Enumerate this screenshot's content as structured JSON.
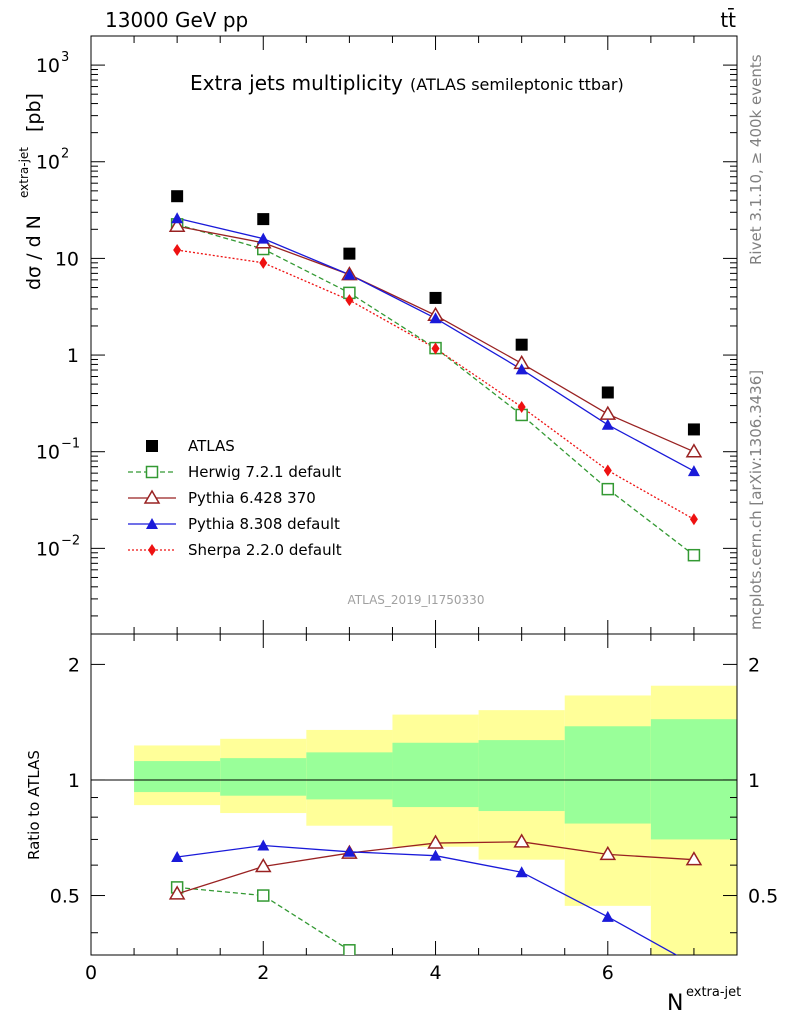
{
  "header": {
    "energy": "13000 GeV pp",
    "process": "tt̄"
  },
  "titles": {
    "main": "Extra jets multiplicity",
    "sub": "(ATLAS semileptonic ttbar)"
  },
  "side_labels": {
    "rivet": "Rivet 3.1.10, ≥ 400k events",
    "mcplots": "mcplots.cern.ch [arXiv:1306.3436]"
  },
  "analysis_id": "ATLAS_2019_I1750330",
  "top_ylabel": {
    "main": "dσ / d N",
    "sup": "extra-jet",
    "unit": "[pb]"
  },
  "bottom_ylabel": "Ratio to ATLAS",
  "xlabel": {
    "main": "N",
    "sup": "extra-jet"
  },
  "top_ticks": [
    {
      "v": 1000,
      "base": "10",
      "exp": "3"
    },
    {
      "v": 100,
      "base": "10",
      "exp": "2"
    },
    {
      "v": 10,
      "base": "10",
      "exp": ""
    },
    {
      "v": 1,
      "base": "1",
      "exp": ""
    },
    {
      "v": 0.1,
      "base": "10",
      "exp": "−1"
    },
    {
      "v": 0.01,
      "base": "10",
      "exp": "−2"
    }
  ],
  "ratio_ticks": [
    "0.5",
    "1",
    "2"
  ],
  "x_ticks": [
    "0",
    "2",
    "4",
    "6"
  ],
  "chart_data": {
    "type": "scatter",
    "title": "Extra jets multiplicity",
    "subtitle": "(ATLAS semileptonic ttbar)",
    "xlabel": "N extra-jet",
    "ylabel": "dσ / d N extra-jet [pb]",
    "xlim": [
      0,
      7.5
    ],
    "ylim": [
      0.0013,
      2000
    ],
    "yscale": "log",
    "x": [
      1,
      2,
      3,
      4,
      5,
      6,
      7
    ],
    "series": [
      {
        "name": "ATLAS",
        "color": "#000000",
        "marker": "square-filled",
        "values": [
          44,
          25.5,
          11.2,
          3.9,
          1.28,
          0.41,
          0.17
        ]
      },
      {
        "name": "Herwig 7.2.1 default",
        "color": "#339933",
        "marker": "square-open",
        "line": "dashed",
        "values": [
          22.5,
          12.5,
          4.4,
          1.18,
          0.24,
          0.041,
          0.0085
        ]
      },
      {
        "name": "Pythia 6.428 370",
        "color": "#992222",
        "marker": "triangle-open",
        "line": "solid",
        "values": [
          21.5,
          14.5,
          6.8,
          2.58,
          0.82,
          0.245,
          0.1
        ]
      },
      {
        "name": "Pythia 8.308 default",
        "color": "#1a1ad9",
        "marker": "triangle-filled",
        "line": "solid",
        "values": [
          26,
          16,
          6.8,
          2.4,
          0.71,
          0.19,
          0.063
        ]
      },
      {
        "name": "Sherpa 2.2.0 default",
        "color": "#ee1111",
        "marker": "diamond-filled",
        "line": "dotted",
        "values": [
          12.2,
          9,
          3.7,
          1.17,
          0.29,
          0.064,
          0.02
        ]
      }
    ],
    "ratio": {
      "ylabel": "Ratio to ATLAS",
      "ylim": [
        0.35,
        2.4
      ],
      "yscale": "log",
      "bins": [
        [
          0.5,
          1.5
        ],
        [
          1.5,
          2.5
        ],
        [
          2.5,
          3.5
        ],
        [
          3.5,
          4.5
        ],
        [
          4.5,
          5.5
        ],
        [
          5.5,
          6.5
        ],
        [
          6.5,
          7.5
        ]
      ],
      "band_inner": [
        [
          0.93,
          1.12
        ],
        [
          0.91,
          1.14
        ],
        [
          0.89,
          1.18
        ],
        [
          0.85,
          1.25
        ],
        [
          0.83,
          1.27
        ],
        [
          0.77,
          1.38
        ],
        [
          0.7,
          1.44
        ]
      ],
      "band_outer": [
        [
          0.86,
          1.23
        ],
        [
          0.82,
          1.28
        ],
        [
          0.76,
          1.35
        ],
        [
          0.67,
          1.48
        ],
        [
          0.62,
          1.52
        ],
        [
          0.47,
          1.66
        ],
        [
          0.33,
          1.76
        ]
      ],
      "series": [
        {
          "name": "Herwig 7.2.1 default",
          "values": [
            0.525,
            0.5,
            0.36,
            null,
            null,
            null,
            null
          ]
        },
        {
          "name": "Pythia 6.428 370",
          "values": [
            0.505,
            0.595,
            0.645,
            0.685,
            0.69,
            0.64,
            0.62
          ]
        },
        {
          "name": "Pythia 8.308 default",
          "values": [
            0.63,
            0.675,
            0.65,
            0.635,
            0.575,
            0.44,
            0.33
          ]
        }
      ]
    },
    "legend": "left-middle",
    "colors": {
      "band_inner": "#99ff99",
      "band_outer": "#ffff99"
    }
  }
}
